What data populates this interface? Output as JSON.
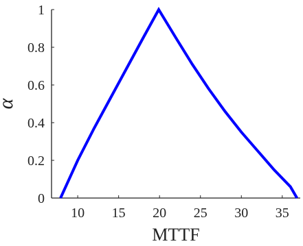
{
  "chart_data": {
    "type": "line",
    "title": "",
    "xlabel": "MTTF",
    "ylabel": "α",
    "xlim": [
      6.8,
      37.2
    ],
    "ylim": [
      0,
      1
    ],
    "xticks": [
      10,
      15,
      20,
      25,
      30,
      35
    ],
    "yticks": [
      0,
      0.2,
      0.4,
      0.6,
      0.8,
      1
    ],
    "xtick_labels": [
      "10",
      "15",
      "20",
      "25",
      "30",
      "35"
    ],
    "ytick_labels": [
      "0",
      "0.2",
      "0.4",
      "0.6",
      "0.8",
      "1"
    ],
    "grid": false,
    "legend": "none",
    "series": [
      {
        "color": "#0000ff",
        "x": [
          7.9,
          10,
          12,
          14,
          16,
          18,
          19.9,
          22,
          24,
          26,
          28,
          30,
          32,
          34,
          36,
          36.8
        ],
        "y": [
          0,
          0.2,
          0.37,
          0.53,
          0.69,
          0.85,
          1.0,
          0.85,
          0.71,
          0.58,
          0.46,
          0.35,
          0.25,
          0.15,
          0.06,
          0
        ]
      }
    ]
  }
}
